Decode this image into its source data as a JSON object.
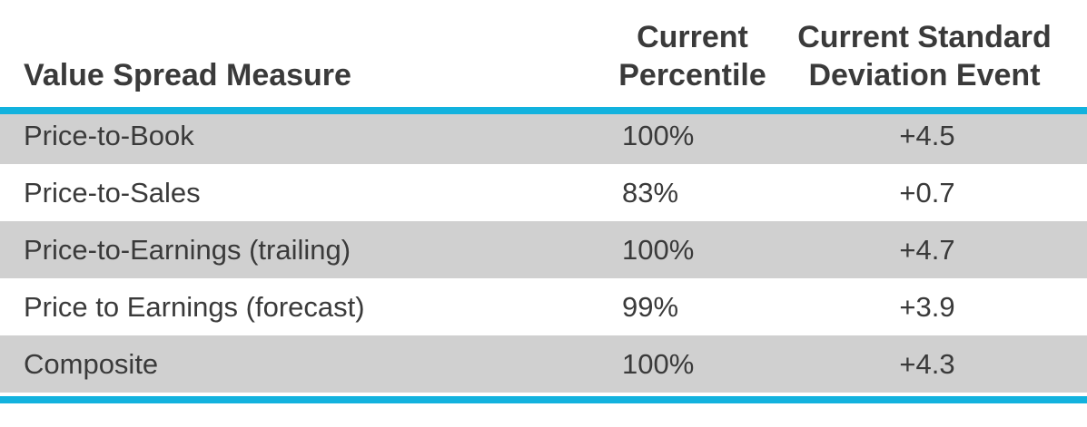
{
  "chart_data": {
    "type": "table",
    "columns": [
      "Value Spread Measure",
      "Current Percentile",
      "Current Standard Deviation Event"
    ],
    "header_lines": {
      "measure": [
        "Value Spread Measure"
      ],
      "percentile": [
        "Current",
        "Percentile"
      ],
      "sd": [
        "Current Standard",
        "Deviation Event"
      ]
    },
    "rows": [
      {
        "measure": "Price-to-Book",
        "percentile": "100%",
        "sd_event": "+4.5"
      },
      {
        "measure": "Price-to-Sales",
        "percentile": "83%",
        "sd_event": "+0.7"
      },
      {
        "measure": "Price-to-Earnings (trailing)",
        "percentile": "100%",
        "sd_event": "+4.7"
      },
      {
        "measure": "Price to Earnings (forecast)",
        "percentile": "99%",
        "sd_event": "+3.9"
      },
      {
        "measure": "Composite",
        "percentile": "100%",
        "sd_event": "+4.3"
      }
    ]
  },
  "colors": {
    "rule": "#12b2de",
    "shaded_row": "#d0d0d0",
    "text": "#3a3a3a"
  }
}
